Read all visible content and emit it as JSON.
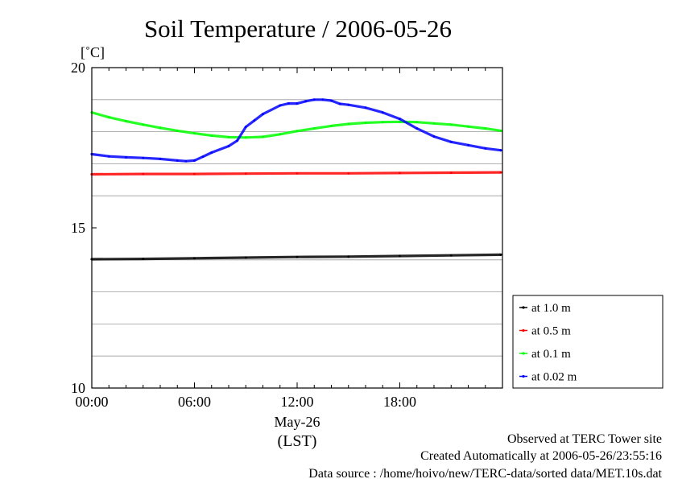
{
  "chart_data": {
    "type": "line",
    "title": "Soil Temperature / 2006-05-26",
    "ylabel": "[˚C]",
    "ylim": [
      10,
      20
    ],
    "yticks": [
      {
        "value": 10,
        "label": "10"
      },
      {
        "value": 15,
        "label": "15"
      },
      {
        "value": 20,
        "label": "20"
      }
    ],
    "y_grid": [
      11,
      12,
      13,
      14,
      16,
      17,
      18,
      19
    ],
    "xlim": [
      0,
      24
    ],
    "xticks": [
      {
        "value": 0,
        "label": "00:00"
      },
      {
        "value": 6,
        "label": "06:00"
      },
      {
        "value": 12,
        "label": "12:00"
      },
      {
        "value": 18,
        "label": "18:00"
      }
    ],
    "date_label": "May-26",
    "xlabel": "(LST)",
    "series": [
      {
        "name": "at 1.0 m",
        "color": "#000000",
        "x": [
          0,
          3,
          6,
          9,
          12,
          15,
          18,
          21,
          23.9
        ],
        "values": [
          14.02,
          14.03,
          14.05,
          14.07,
          14.09,
          14.1,
          14.12,
          14.14,
          14.16
        ]
      },
      {
        "name": "at 0.5 m",
        "color": "#ff0000",
        "x": [
          0,
          3,
          6,
          9,
          12,
          15,
          18,
          21,
          23.9
        ],
        "values": [
          16.67,
          16.68,
          16.68,
          16.69,
          16.7,
          16.7,
          16.71,
          16.72,
          16.73
        ]
      },
      {
        "name": "at 0.1 m",
        "color": "#00ff00",
        "x": [
          0,
          1,
          2,
          3,
          4,
          5,
          6,
          7,
          8,
          9,
          10,
          11,
          12,
          13,
          14,
          15,
          16,
          17,
          18,
          19,
          20,
          21,
          22,
          23,
          23.9
        ],
        "values": [
          18.6,
          18.45,
          18.33,
          18.22,
          18.12,
          18.03,
          17.95,
          17.88,
          17.83,
          17.82,
          17.84,
          17.92,
          18.02,
          18.1,
          18.18,
          18.24,
          18.28,
          18.3,
          18.31,
          18.3,
          18.26,
          18.22,
          18.16,
          18.1,
          18.03
        ]
      },
      {
        "name": "at 0.02 m",
        "color": "#0000ff",
        "x": [
          0,
          1,
          2,
          3,
          4,
          5,
          5.5,
          6,
          6.5,
          7,
          8,
          8.5,
          9,
          9.5,
          10,
          11,
          11.5,
          12,
          12.5,
          13,
          13.5,
          14,
          14.5,
          15,
          16,
          17,
          18,
          19,
          20,
          21,
          22,
          23,
          23.9
        ],
        "values": [
          17.3,
          17.23,
          17.2,
          17.18,
          17.15,
          17.1,
          17.08,
          17.1,
          17.22,
          17.35,
          17.55,
          17.72,
          18.15,
          18.35,
          18.55,
          18.82,
          18.88,
          18.88,
          18.95,
          19.0,
          19.0,
          18.97,
          18.87,
          18.84,
          18.75,
          18.6,
          18.4,
          18.1,
          17.85,
          17.68,
          17.58,
          17.48,
          17.42
        ]
      }
    ]
  },
  "footer": {
    "site": "Observed at TERC Tower site",
    "created": "Created Automatically at 2006-05-26/23:55:16",
    "source": "Data source : /home/hoivo/new/TERC-data/sorted  data/MET.10s.dat"
  }
}
